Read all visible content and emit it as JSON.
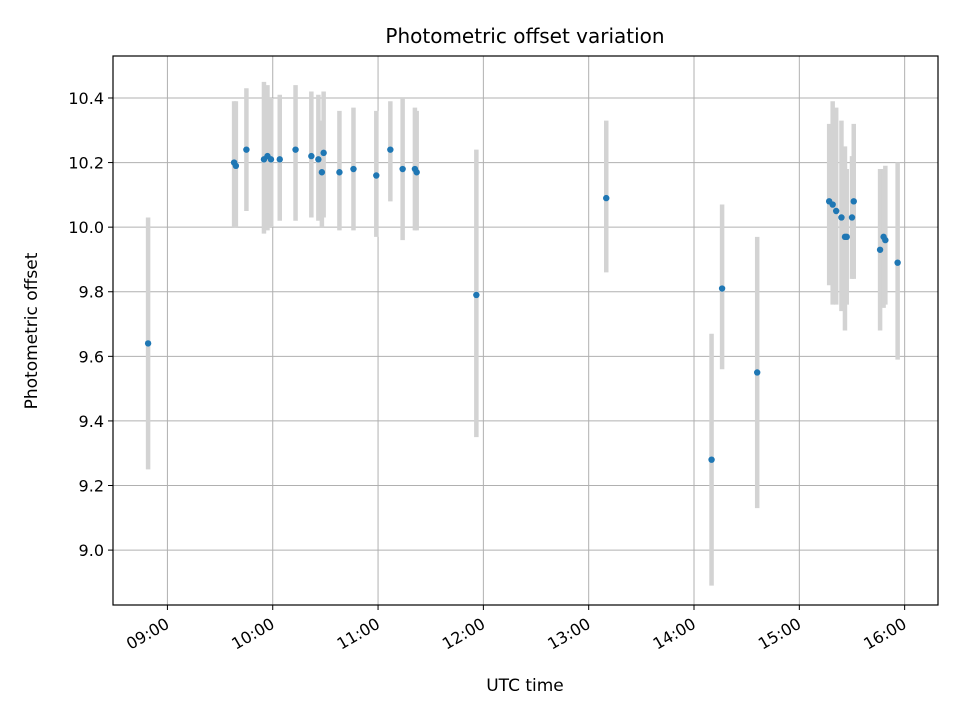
{
  "chart_data": {
    "type": "scatter",
    "title": "Photometric offset variation",
    "xlabel": "UTC time",
    "ylabel": "Photometric offset",
    "x_tick_labels": [
      "09:00",
      "10:00",
      "11:00",
      "12:00",
      "13:00",
      "14:00",
      "15:00",
      "16:00"
    ],
    "y_tick_labels": [
      "9.0",
      "9.2",
      "9.4",
      "9.6",
      "9.8",
      "10.0",
      "10.2",
      "10.4"
    ],
    "xlim": [
      "08:29",
      "16:19"
    ],
    "ylim": [
      8.83,
      10.53
    ],
    "grid": true,
    "colors": {
      "marker": "#1f77b4",
      "errorbar": "#d3d3d3",
      "grid": "#b0b0b0",
      "axes": "#000000"
    },
    "points": [
      {
        "x": "08:49",
        "y": 9.64,
        "lo": 9.25,
        "hi": 10.03
      },
      {
        "x": "09:38",
        "y": 10.2,
        "lo": 10.0,
        "hi": 10.39
      },
      {
        "x": "09:39",
        "y": 10.19,
        "lo": 10.0,
        "hi": 10.39
      },
      {
        "x": "09:45",
        "y": 10.24,
        "lo": 10.05,
        "hi": 10.43
      },
      {
        "x": "09:55",
        "y": 10.21,
        "lo": 9.98,
        "hi": 10.45
      },
      {
        "x": "09:57",
        "y": 10.22,
        "lo": 9.99,
        "hi": 10.44
      },
      {
        "x": "09:59",
        "y": 10.21,
        "lo": 10.0,
        "hi": 10.4
      },
      {
        "x": "10:04",
        "y": 10.21,
        "lo": 10.02,
        "hi": 10.41
      },
      {
        "x": "10:13",
        "y": 10.24,
        "lo": 10.02,
        "hi": 10.44
      },
      {
        "x": "10:22",
        "y": 10.22,
        "lo": 10.03,
        "hi": 10.42
      },
      {
        "x": "10:26",
        "y": 10.21,
        "lo": 10.02,
        "hi": 10.41
      },
      {
        "x": "10:28",
        "y": 10.17,
        "lo": 10.0,
        "hi": 10.33
      },
      {
        "x": "10:29",
        "y": 10.23,
        "lo": 10.03,
        "hi": 10.42
      },
      {
        "x": "10:38",
        "y": 10.17,
        "lo": 9.99,
        "hi": 10.36
      },
      {
        "x": "10:46",
        "y": 10.18,
        "lo": 9.99,
        "hi": 10.37
      },
      {
        "x": "10:59",
        "y": 10.16,
        "lo": 9.97,
        "hi": 10.36
      },
      {
        "x": "11:07",
        "y": 10.24,
        "lo": 10.08,
        "hi": 10.39
      },
      {
        "x": "11:14",
        "y": 10.18,
        "lo": 9.96,
        "hi": 10.4
      },
      {
        "x": "11:21",
        "y": 10.18,
        "lo": 9.99,
        "hi": 10.37
      },
      {
        "x": "11:22",
        "y": 10.17,
        "lo": 9.99,
        "hi": 10.36
      },
      {
        "x": "11:56",
        "y": 9.79,
        "lo": 9.35,
        "hi": 10.24
      },
      {
        "x": "13:10",
        "y": 10.09,
        "lo": 9.86,
        "hi": 10.33
      },
      {
        "x": "14:10",
        "y": 9.28,
        "lo": 8.89,
        "hi": 9.67
      },
      {
        "x": "14:16",
        "y": 9.81,
        "lo": 9.56,
        "hi": 10.07
      },
      {
        "x": "14:36",
        "y": 9.55,
        "lo": 9.13,
        "hi": 9.97
      },
      {
        "x": "15:17",
        "y": 10.08,
        "lo": 9.82,
        "hi": 10.32
      },
      {
        "x": "15:19",
        "y": 10.07,
        "lo": 9.76,
        "hi": 10.39
      },
      {
        "x": "15:21",
        "y": 10.05,
        "lo": 9.76,
        "hi": 10.37
      },
      {
        "x": "15:24",
        "y": 10.03,
        "lo": 9.74,
        "hi": 10.33
      },
      {
        "x": "15:26",
        "y": 9.97,
        "lo": 9.68,
        "hi": 10.25
      },
      {
        "x": "15:27",
        "y": 9.97,
        "lo": 9.76,
        "hi": 10.18
      },
      {
        "x": "15:30",
        "y": 10.03,
        "lo": 9.84,
        "hi": 10.22
      },
      {
        "x": "15:31",
        "y": 10.08,
        "lo": 9.84,
        "hi": 10.32
      },
      {
        "x": "15:46",
        "y": 9.93,
        "lo": 9.68,
        "hi": 10.18
      },
      {
        "x": "15:48",
        "y": 9.97,
        "lo": 9.75,
        "hi": 10.18
      },
      {
        "x": "15:49",
        "y": 9.96,
        "lo": 9.76,
        "hi": 10.19
      },
      {
        "x": "15:56",
        "y": 9.89,
        "lo": 9.59,
        "hi": 10.2
      }
    ]
  }
}
